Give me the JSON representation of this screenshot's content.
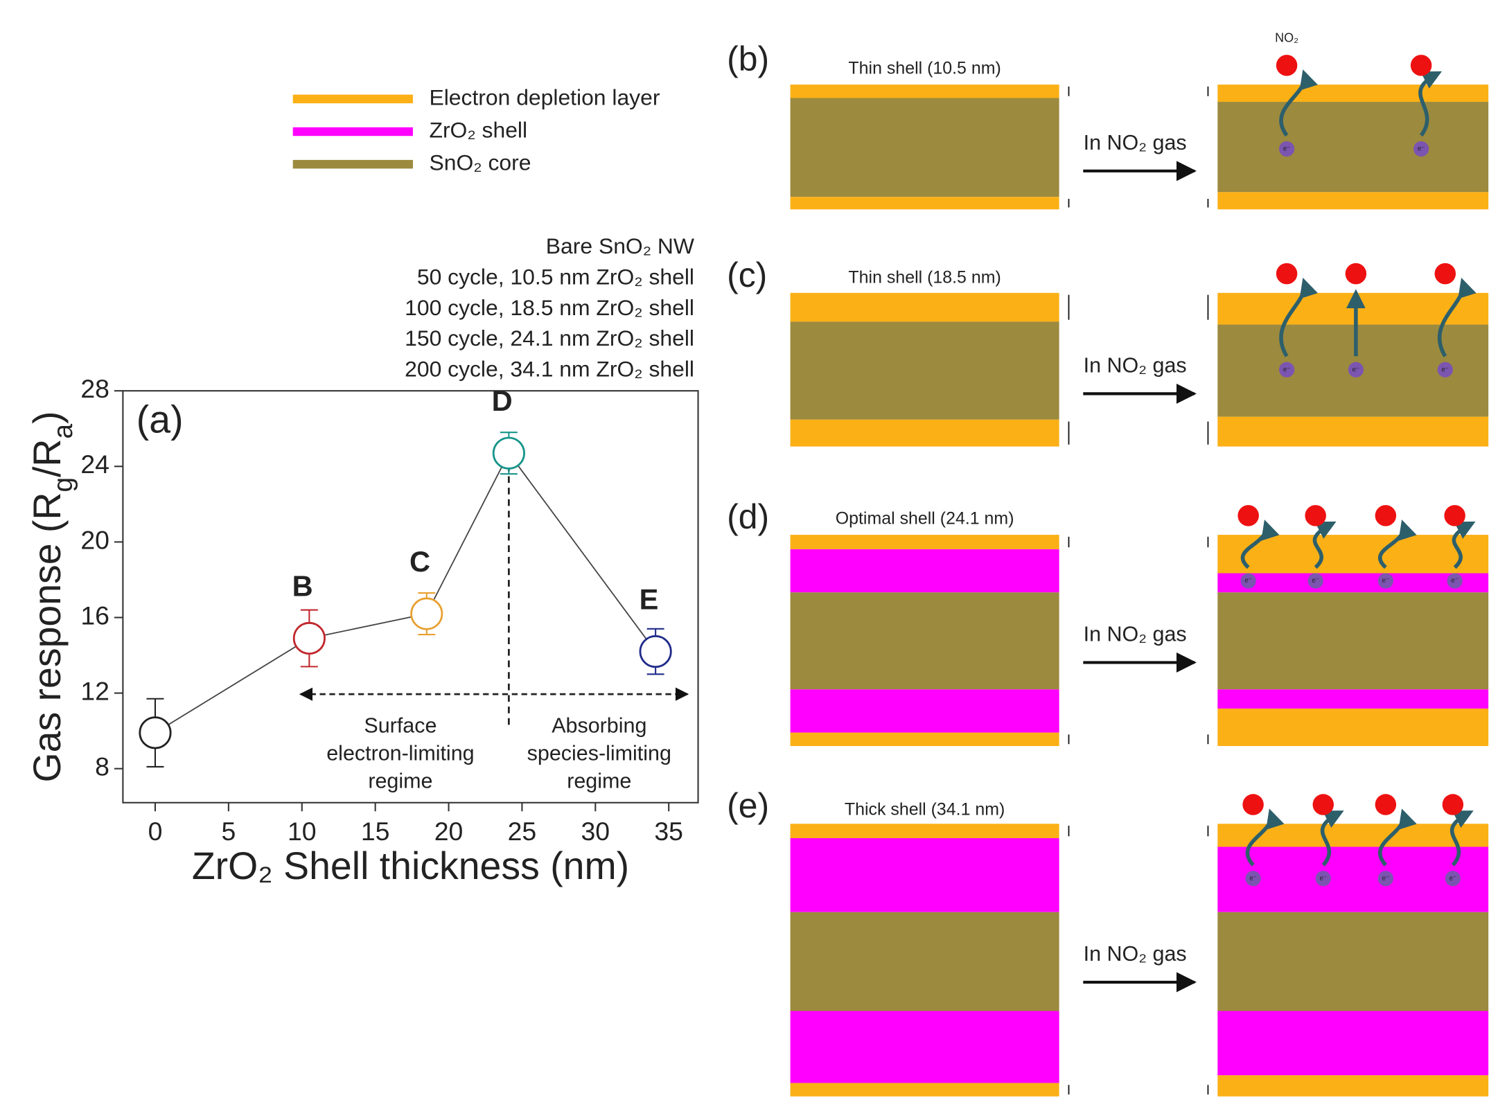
{
  "chart_data": {
    "type": "scatter",
    "panel_label": "(a)",
    "x_label": "ZrO₂ Shell thickness (nm)",
    "y_label": [
      "Gas response (R",
      "g",
      "/R",
      "a",
      ")"
    ],
    "x": [
      0,
      10.5,
      18.5,
      24.1,
      34.1
    ],
    "series": [
      {
        "values": [
          9.9,
          14.9,
          16.2,
          24.7,
          14.2
        ],
        "errors": [
          1.8,
          1.5,
          1.1,
          1.1,
          1.2
        ],
        "colors": [
          "#222222",
          "#c0272d",
          "#e8a030",
          "#17958a",
          "#1f2a8a"
        ],
        "point_labels": [
          null,
          "B",
          "C",
          "D",
          "E"
        ]
      }
    ],
    "legend": [
      "Bare SnO₂ NW",
      "50 cycle, 10.5 nm ZrO₂ shell",
      "100 cycle, 18.5 nm ZrO₂ shell",
      "150 cycle, 24.1 nm ZrO₂ shell",
      "200 cycle, 34.1 nm ZrO₂ shell"
    ],
    "xlim": [
      -2.2,
      37
    ],
    "ylim": [
      6.2,
      28
    ],
    "xticks": [
      0,
      5,
      10,
      15,
      20,
      25,
      30,
      35
    ],
    "yticks": [
      8,
      12,
      16,
      20,
      24,
      28
    ],
    "annotations": [
      [
        "Surface",
        "electron-limiting",
        "regime"
      ],
      [
        "Absorbing",
        "species-limiting",
        "regime"
      ]
    ]
  },
  "layers": {
    "names": [
      "Electron depletion layer",
      "ZrO₂ shell",
      "SnO₂ core"
    ],
    "colors": [
      "#fbb016",
      "#ff00ff",
      "#9c8a3e"
    ]
  },
  "molecule_label": "NO₂",
  "electron_label": "e⁻",
  "panels": [
    {
      "label": "(b)",
      "caption": "Thin shell (10.5 nm)",
      "gas": "In NO₂ gas"
    },
    {
      "label": "(c)",
      "caption": "Thin shell (18.5 nm)",
      "gas": "In NO₂ gas"
    },
    {
      "label": "(d)",
      "caption": "Optimal shell (24.1 nm)",
      "gas": "In NO₂ gas"
    },
    {
      "label": "(e)",
      "caption": "Thick shell (34.1 nm)",
      "gas": "In NO₂ gas"
    }
  ]
}
